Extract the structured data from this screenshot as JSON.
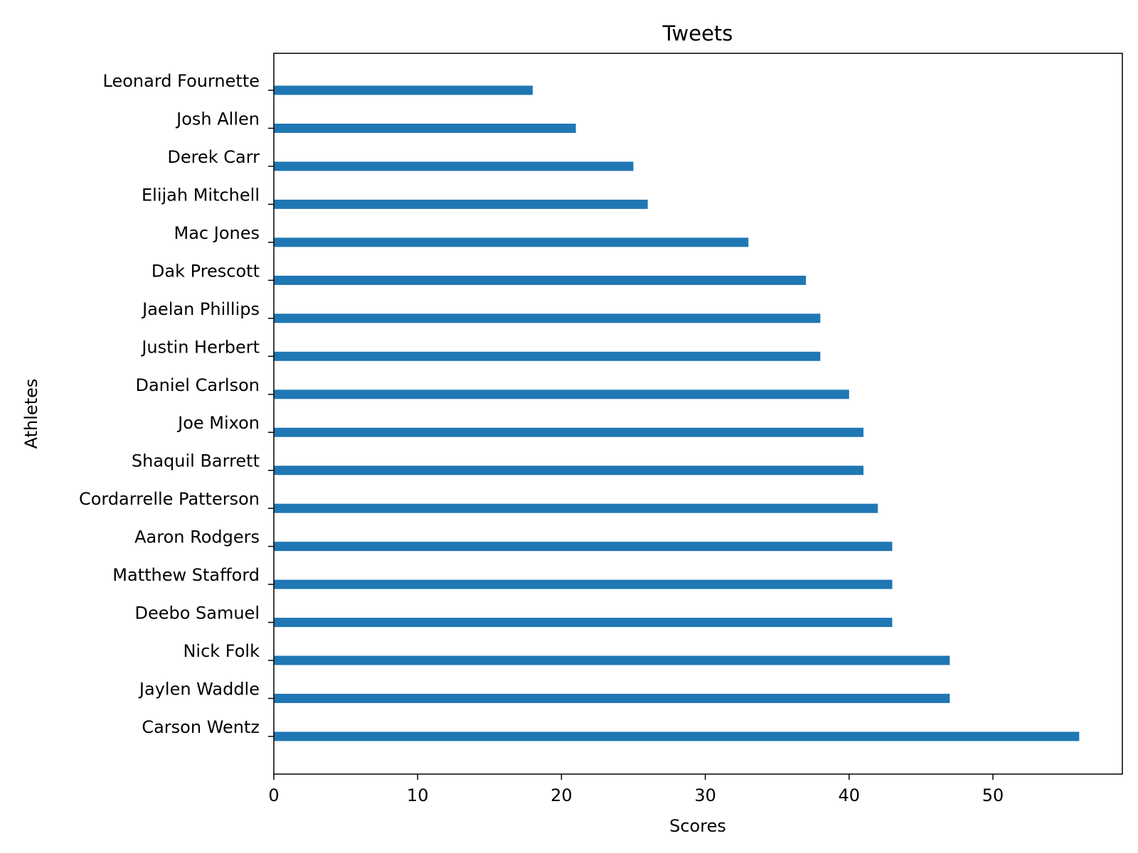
{
  "chart_data": {
    "type": "bar",
    "orientation": "horizontal",
    "title": "Tweets",
    "xlabel": "Scores",
    "ylabel": "Athletes",
    "xlim": [
      0,
      59
    ],
    "xticks": [
      0,
      10,
      20,
      30,
      40,
      50
    ],
    "grid": false,
    "bar_color": "#1f77b4",
    "categories": [
      "Leonard Fournette",
      "Josh Allen",
      "Derek Carr",
      "Elijah Mitchell",
      "Mac Jones",
      "Dak Prescott",
      "Jaelan Phillips",
      "Justin Herbert",
      "Daniel Carlson",
      "Joe Mixon",
      "Shaquil Barrett",
      "Cordarrelle Patterson",
      "Aaron Rodgers",
      "Matthew Stafford",
      "Deebo Samuel",
      "Nick Folk",
      "Jaylen Waddle",
      "Carson Wentz"
    ],
    "values": [
      18,
      21,
      25,
      26,
      33,
      37,
      38,
      38,
      40,
      41,
      41,
      42,
      43,
      43,
      43,
      47,
      47,
      56
    ]
  }
}
